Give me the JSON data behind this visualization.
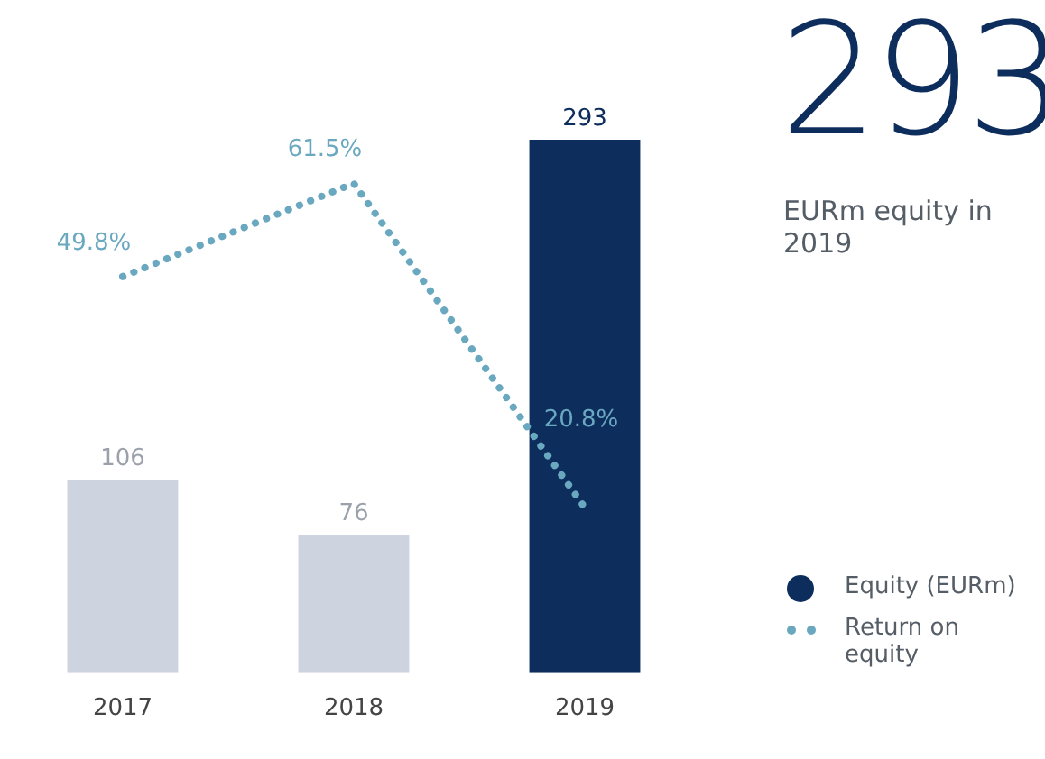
{
  "chart_data": {
    "type": "bar",
    "categories": [
      "2017",
      "2018",
      "2019"
    ],
    "series": [
      {
        "name": "Equity (EURm)",
        "color": "#0d2d5c",
        "colors": [
          "#cdd3df",
          "#cdd3df",
          "#0d2d5c"
        ],
        "values": [
          106,
          76,
          293
        ],
        "value_labels": [
          "106",
          "76",
          "293"
        ]
      },
      {
        "type": "line",
        "name": "Return on equity",
        "color": "#6aa8c0",
        "axis": "y2",
        "values": [
          49.8,
          61.5,
          20.8
        ],
        "value_labels": [
          "49.8%",
          "61.5%",
          "20.8%"
        ]
      }
    ],
    "tick_labels": "x",
    "legend": "bottom right",
    "line_style": "dotted",
    "marker": "none",
    "annotations": [
      "293",
      "EURm equity in 2019"
    ]
  }
}
